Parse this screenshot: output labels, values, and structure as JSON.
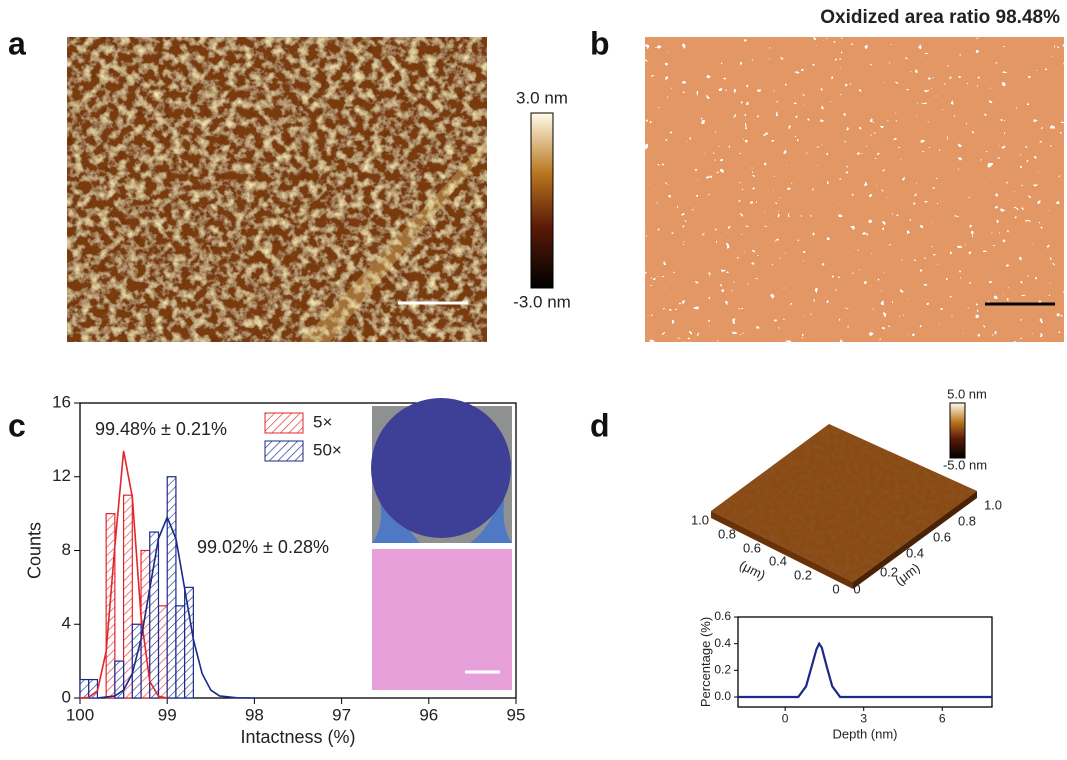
{
  "panels": {
    "a": {
      "label": "a",
      "colorbar_max": "3.0 nm",
      "colorbar_min": "-3.0 nm"
    },
    "b": {
      "label": "b",
      "title": "Oxidized area ratio 98.48%"
    },
    "c": {
      "label": "c"
    },
    "d": {
      "label": "d",
      "colorbar_max": "5.0 nm",
      "colorbar_min": "-5.0 nm",
      "left_axis": {
        "label": "(μm)",
        "ticks": [
          "1.0",
          "0.8",
          "0.6",
          "0.4",
          "0.2",
          "0"
        ]
      },
      "right_axis": {
        "label": "(μm)",
        "ticks": [
          "0",
          "0.2",
          "0.4",
          "0.6",
          "0.8",
          "1.0"
        ]
      }
    }
  },
  "chart_data": [
    {
      "type": "histogram",
      "xlabel": "Intactness (%)",
      "ylabel": "Counts",
      "xlim": [
        100,
        95
      ],
      "xticks": [
        100,
        99,
        98,
        97,
        96,
        95
      ],
      "ylim": [
        0,
        16
      ],
      "yticks": [
        0,
        4,
        8,
        12,
        16
      ],
      "bins": [
        100,
        99.9,
        99.8,
        99.7,
        99.6,
        99.5,
        99.4,
        99.3,
        99.2,
        99.1,
        99.0,
        98.9,
        98.8,
        98.7
      ],
      "series": [
        {
          "name": "5×",
          "color": "#e3262b",
          "values": [
            0,
            0,
            0,
            10,
            0,
            11,
            0,
            8,
            0,
            5,
            0,
            0,
            0
          ],
          "annotation": "99.48% ± 0.21%",
          "fit_x": [
            100,
            99.9,
            99.8,
            99.7,
            99.6,
            99.5,
            99.4,
            99.3,
            99.2,
            99.1,
            99.0
          ],
          "fit_values": [
            0,
            0.03,
            0.39,
            2.53,
            8.25,
            13.4,
            10.9,
            4.42,
            0.9,
            0.09,
            0
          ]
        },
        {
          "name": "50×",
          "color": "#1b2a8a",
          "values": [
            1,
            1,
            0,
            0,
            2,
            0,
            4,
            0,
            9,
            0,
            12,
            5,
            6
          ],
          "annotation": "99.02% ± 0.28%",
          "fit_x": [
            99.8,
            99.6,
            99.5,
            99.4,
            99.3,
            99.2,
            99.1,
            99.0,
            98.9,
            98.8,
            98.7,
            98.6,
            98.5,
            98.4,
            98.2,
            98.0
          ],
          "fit_values": [
            0,
            0.11,
            0.43,
            1.33,
            3.18,
            5.94,
            8.65,
            9.8,
            8.65,
            5.94,
            3.18,
            1.33,
            0.43,
            0.11,
            0.01,
            0
          ]
        }
      ]
    },
    {
      "type": "line",
      "xlabel": "Depth (nm)",
      "ylabel": "Percentage (%)",
      "xlim": [
        -1.8,
        7.9
      ],
      "xticks": [
        0,
        3,
        6
      ],
      "ylim": [
        -0.075,
        0.6
      ],
      "yticks": [
        {
          "value": 0,
          "label": "0.0"
        },
        0.2,
        0.4,
        0.6
      ],
      "color": "#1b2a8a",
      "x": [
        -1.8,
        0.5,
        0.8,
        1.0,
        1.2,
        1.3,
        1.4,
        1.6,
        1.8,
        2.1,
        7.9
      ],
      "values": [
        0,
        0,
        0.08,
        0.22,
        0.36,
        0.4,
        0.37,
        0.22,
        0.08,
        0,
        0
      ]
    }
  ]
}
